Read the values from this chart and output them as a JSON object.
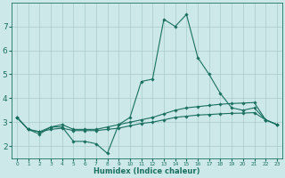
{
  "xlabel": "Humidex (Indice chaleur)",
  "background_color": "#cce8e8",
  "grid_color": "#aacccc",
  "line_color": "#1a7060",
  "xlim": [
    -0.5,
    23.5
  ],
  "ylim": [
    1.5,
    8.0
  ],
  "yticks": [
    2,
    3,
    4,
    5,
    6,
    7
  ],
  "xticks": [
    0,
    1,
    2,
    3,
    4,
    5,
    6,
    7,
    8,
    9,
    10,
    11,
    12,
    13,
    14,
    15,
    16,
    17,
    18,
    19,
    20,
    21,
    22,
    23
  ],
  "lines": [
    {
      "x": [
        0,
        1,
        2,
        3,
        4,
        5,
        6,
        7,
        8,
        9,
        10,
        11,
        12,
        13,
        14,
        15,
        16,
        17,
        18,
        19,
        20,
        21,
        22,
        23
      ],
      "y": [
        3.2,
        2.7,
        2.5,
        2.8,
        2.8,
        2.2,
        2.2,
        2.1,
        1.7,
        2.9,
        3.2,
        4.7,
        4.8,
        7.3,
        7.0,
        7.5,
        5.7,
        5.0,
        4.2,
        3.6,
        3.5,
        3.6,
        3.1,
        2.9
      ]
    },
    {
      "x": [
        0,
        1,
        2,
        3,
        4,
        5,
        6,
        7,
        8,
        9,
        10,
        11,
        12,
        13,
        14,
        15,
        16,
        17,
        18,
        19,
        20,
        21,
        22,
        23
      ],
      "y": [
        3.2,
        2.7,
        2.6,
        2.8,
        2.9,
        2.7,
        2.7,
        2.7,
        2.8,
        2.9,
        3.0,
        3.1,
        3.2,
        3.35,
        3.5,
        3.6,
        3.65,
        3.7,
        3.75,
        3.78,
        3.8,
        3.82,
        3.1,
        2.9
      ]
    },
    {
      "x": [
        0,
        1,
        2,
        3,
        4,
        5,
        6,
        7,
        8,
        9,
        10,
        11,
        12,
        13,
        14,
        15,
        16,
        17,
        18,
        19,
        20,
        21,
        22,
        23
      ],
      "y": [
        3.2,
        2.7,
        2.6,
        2.7,
        2.75,
        2.65,
        2.65,
        2.65,
        2.7,
        2.75,
        2.85,
        2.95,
        3.0,
        3.1,
        3.2,
        3.25,
        3.3,
        3.32,
        3.35,
        3.37,
        3.38,
        3.4,
        3.1,
        2.9
      ]
    }
  ]
}
